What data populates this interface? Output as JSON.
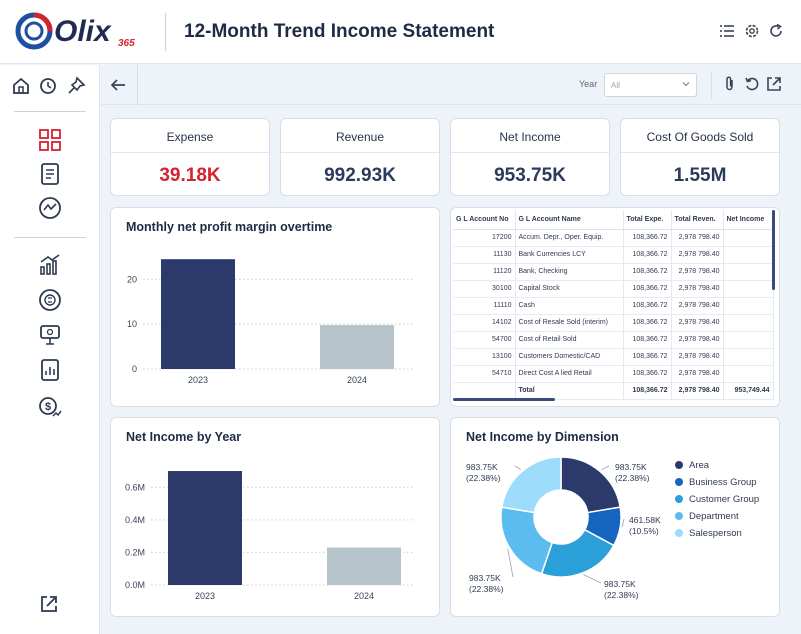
{
  "header": {
    "brand": "Olix",
    "brand_suffix": "365",
    "title": "12-Month Trend Income Statement"
  },
  "toolbar": {
    "year_label": "Year",
    "year_value": "All"
  },
  "icons": {
    "header": [
      "list-icon",
      "gear-icon",
      "refresh-icon"
    ],
    "toolbar": [
      "back-arrow-icon",
      "paperclip-icon",
      "undo-icon",
      "external-link-icon"
    ],
    "sidebar": [
      "home-icon",
      "clock-icon",
      "pin-icon",
      "grid-icon",
      "document-icon",
      "trend-icon",
      "bar-chart-icon",
      "currency-exchange-icon",
      "presentation-icon",
      "report-icon",
      "money-growth-icon",
      "external-link-icon"
    ]
  },
  "kpis": [
    {
      "label": "Expense",
      "value": "39.18K",
      "color": "#d62230"
    },
    {
      "label": "Revenue",
      "value": "992.93K",
      "color": "#2c3a5b"
    },
    {
      "label": "Net Income",
      "value": "953.75K",
      "color": "#2c3a5b"
    },
    {
      "label": "Cost Of Goods Sold",
      "value": "1.55M",
      "color": "#2c3a5b"
    }
  ],
  "colors": {
    "navy": "#2c3a6b",
    "gray_bar": "#b8c4cc",
    "accent_red": "#d62230"
  },
  "table": {
    "columns": [
      "G L Account No",
      "G L Account Name",
      "Total Expe.",
      "Total Reven.",
      "Net Income"
    ],
    "rows": [
      [
        "17200",
        "Accum. Depr., Oper. Equip.",
        "108,366.72",
        "2,978 798.40",
        ""
      ],
      [
        "11130",
        "Bank Currencies LCY",
        "108,366.72",
        "2,978 798.40",
        ""
      ],
      [
        "11120",
        "Bank, Checking",
        "108,366.72",
        "2,978 798.40",
        ""
      ],
      [
        "30100",
        "Capital Stock",
        "108,366.72",
        "2,978 798.40",
        ""
      ],
      [
        "11110",
        "Cash",
        "108,366.72",
        "2,978 798.40",
        ""
      ],
      [
        "14102",
        "Cost of Resale Sold (interim)",
        "108,366.72",
        "2,978 798.40",
        ""
      ],
      [
        "54700",
        "Cost of Retail Sold",
        "108,366.72",
        "2,978 798.40",
        ""
      ],
      [
        "13100",
        "Customers Domestic/CAD",
        "108,366.72",
        "2,978 798.40",
        ""
      ],
      [
        "54710",
        "Direct Cost A lied Retail",
        "108,366.72",
        "2,978 798.40",
        ""
      ]
    ],
    "total_row": [
      "",
      "Total",
      "108,366.72",
      "2,978 798.40",
      "953,749.44"
    ]
  },
  "chart_data": [
    {
      "type": "bar",
      "title": "Monthly net profit margin overtime",
      "categories": [
        "2023",
        "2024"
      ],
      "values": [
        24.5,
        9.8
      ],
      "y_ticks": [
        "0",
        "10",
        "20"
      ],
      "ylim": [
        0,
        27
      ],
      "bar_colors": [
        "#2c3a6b",
        "#b8c4cc"
      ],
      "grid": true
    },
    {
      "type": "bar",
      "title": "Net Income by Year",
      "categories": [
        "2023",
        "2024"
      ],
      "values": [
        0.7,
        0.23
      ],
      "y_ticks": [
        "0.0M",
        "0.2M",
        "0.4M",
        "0.6M"
      ],
      "ylim": [
        0,
        0.78
      ],
      "bar_colors": [
        "#2c3a6b",
        "#b8c4cc"
      ],
      "grid": true
    },
    {
      "type": "pie",
      "title": "Net Income by Dimension",
      "legend_position": "right",
      "slices": [
        {
          "name": "Area",
          "value": 983.75,
          "label": "983.75K",
          "pct": "(22.38%)",
          "color": "#2b3a6b"
        },
        {
          "name": "Business Group",
          "value": 461.58,
          "label": "461.58K",
          "pct": "(10.5%)",
          "color": "#1565c0"
        },
        {
          "name": "Customer Group",
          "value": 983.75,
          "label": "983.75K",
          "pct": "(22.38%)",
          "color": "#2a9fd8"
        },
        {
          "name": "Department",
          "value": 983.75,
          "label": "983.75K",
          "pct": "(22.38%)",
          "color": "#5bbcf0"
        },
        {
          "name": "Salesperson",
          "value": 983.75,
          "label": "983.75K",
          "pct": "(22.38%)",
          "color": "#9ddcfa"
        }
      ]
    }
  ]
}
